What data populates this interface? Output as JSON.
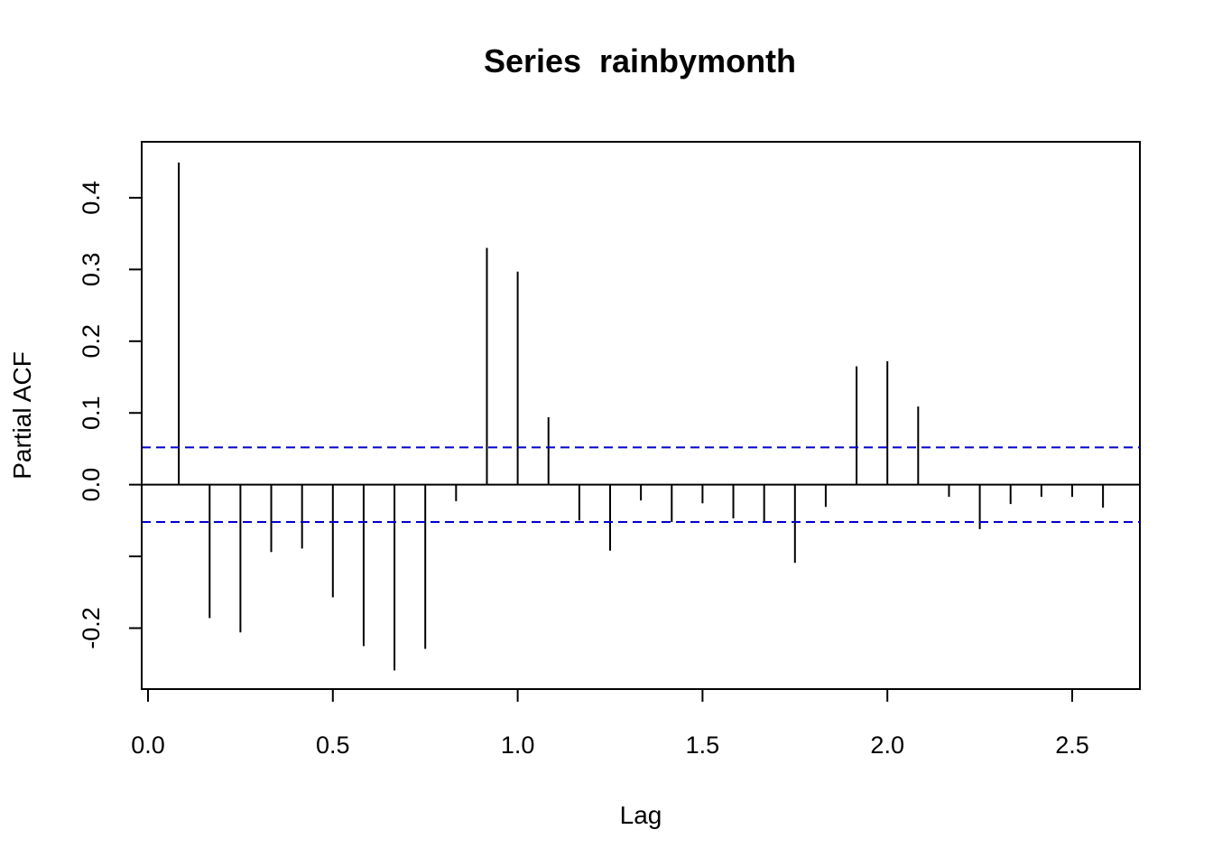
{
  "chart_data": {
    "type": "bar",
    "title": "Series  rainbymonth",
    "xlabel": "Lag",
    "ylabel": "Partial ACF",
    "xlim": [
      0.0,
      2.68
    ],
    "ylim": [
      -0.285,
      0.478
    ],
    "x_ticks": [
      "0.0",
      "0.5",
      "1.0",
      "1.5",
      "2.0",
      "2.5"
    ],
    "x_tick_values": [
      0.0,
      0.5,
      1.0,
      1.5,
      2.0,
      2.5
    ],
    "y_ticks": [
      "-0.2",
      "0.0",
      "0.1",
      "0.2",
      "0.3",
      "0.4"
    ],
    "y_tick_values": [
      -0.2,
      -0.1,
      0.0,
      0.1,
      0.2,
      0.3,
      0.4
    ],
    "confidence_limit": 0.052,
    "confidence_color": "#0000cc",
    "bar_color": "#000000",
    "lags": [
      0.0833,
      0.1667,
      0.25,
      0.3333,
      0.4167,
      0.5,
      0.5833,
      0.6667,
      0.75,
      0.8333,
      0.9167,
      1.0,
      1.0833,
      1.1667,
      1.25,
      1.3333,
      1.4167,
      1.5,
      1.5833,
      1.6667,
      1.75,
      1.8333,
      1.9167,
      2.0,
      2.0833,
      2.1667,
      2.25,
      2.3333,
      2.4167,
      2.5,
      2.5833
    ],
    "values": [
      0.449,
      -0.186,
      -0.206,
      -0.094,
      -0.089,
      -0.157,
      -0.225,
      -0.259,
      -0.229,
      -0.023,
      0.33,
      0.297,
      0.094,
      -0.05,
      -0.092,
      -0.022,
      -0.052,
      -0.026,
      -0.047,
      -0.052,
      -0.109,
      -0.031,
      0.165,
      0.172,
      0.109,
      -0.017,
      -0.062,
      -0.027,
      -0.017,
      -0.017,
      -0.032
    ]
  }
}
